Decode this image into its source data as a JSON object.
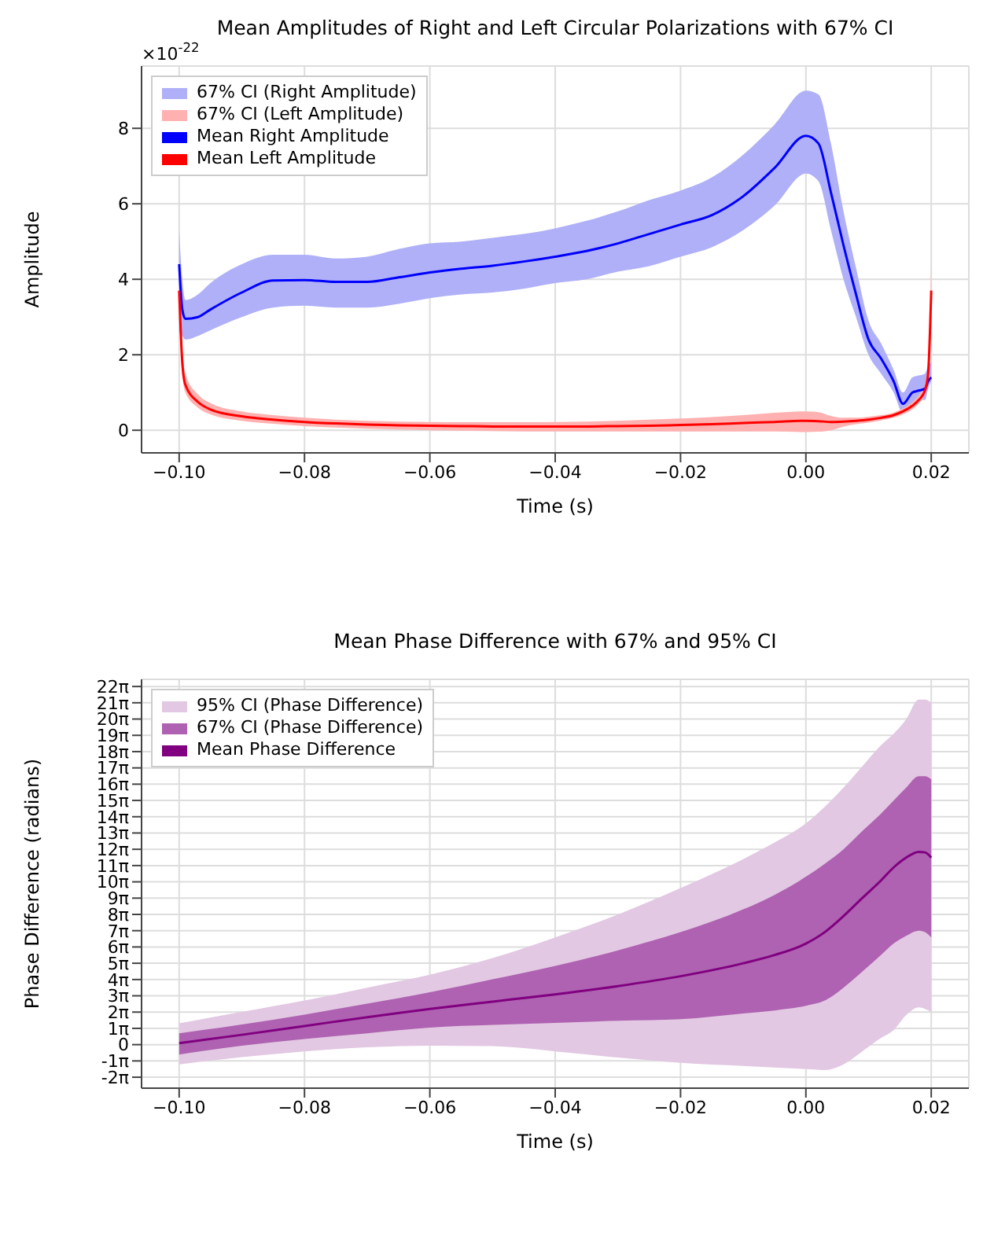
{
  "chart_data": [
    {
      "type": "line",
      "title": "Mean Amplitudes of Right and Left Circular Polarizations with 67% CI",
      "xlabel": "Time (s)",
      "ylabel": "Amplitude",
      "annotations": [
        "×10$^{-22}$"
      ],
      "x": [
        -0.1,
        -0.0995,
        -0.099,
        -0.097,
        -0.095,
        -0.09,
        -0.085,
        -0.08,
        -0.075,
        -0.07,
        -0.065,
        -0.06,
        -0.055,
        -0.05,
        -0.045,
        -0.04,
        -0.035,
        -0.03,
        -0.025,
        -0.02,
        -0.015,
        -0.01,
        -0.005,
        0,
        0.002,
        0.004,
        0.006,
        0.008,
        0.01,
        0.012,
        0.014,
        0.0155,
        0.017,
        0.018,
        0.019,
        0.0195,
        0.02
      ],
      "series": [
        {
          "name": "67% CI (Right Amplitude)",
          "type": "area",
          "color": "#b0b0f8",
          "values": [
            null,
            null,
            null,
            null,
            null,
            null,
            null,
            null,
            null,
            null,
            null,
            null,
            null,
            null,
            null,
            null,
            null,
            null,
            null,
            null,
            null,
            null,
            null,
            null,
            null,
            null,
            null,
            null,
            null,
            null,
            null,
            null,
            null,
            null,
            null,
            null,
            null
          ],
          "lower": [
            2.6,
            2.5,
            2.4,
            2.5,
            2.65,
            3.0,
            3.25,
            3.3,
            3.25,
            3.25,
            3.35,
            3.5,
            3.6,
            3.65,
            3.75,
            3.9,
            4.0,
            4.2,
            4.35,
            4.6,
            4.85,
            5.3,
            5.95,
            6.8,
            6.6,
            5.3,
            4.0,
            3.0,
            2.0,
            1.5,
            1.0,
            0.45,
            0.7,
            0.8,
            0.8,
            1.1,
            1.3
          ],
          "upper": [
            5.3,
            4.0,
            3.45,
            3.6,
            3.9,
            4.4,
            4.65,
            4.65,
            4.55,
            4.6,
            4.8,
            4.95,
            5.0,
            5.1,
            5.2,
            5.35,
            5.55,
            5.8,
            6.1,
            6.35,
            6.7,
            7.3,
            8.1,
            9.0,
            8.9,
            7.6,
            5.8,
            4.3,
            2.9,
            2.3,
            1.6,
            1.0,
            1.4,
            1.45,
            1.5,
            1.7,
            1.8
          ]
        },
        {
          "name": "67% CI (Left Amplitude)",
          "type": "area",
          "color": "#ffb0b0",
          "values": [
            null,
            null,
            null,
            null,
            null,
            null,
            null,
            null,
            null,
            null,
            null,
            null,
            null,
            null,
            null,
            null,
            null,
            null,
            null,
            null,
            null,
            null,
            null,
            null,
            null,
            null,
            null,
            null,
            null,
            null,
            null,
            null,
            null,
            null,
            null,
            null,
            null
          ],
          "lower": [
            3.4,
            1.5,
            1.0,
            0.6,
            0.42,
            0.25,
            0.17,
            0.11,
            0.07,
            0.04,
            0.02,
            0.0,
            -0.01,
            -0.02,
            -0.03,
            -0.03,
            -0.03,
            -0.03,
            -0.03,
            -0.03,
            -0.03,
            -0.03,
            -0.03,
            -0.05,
            -0.04,
            0.0,
            0.1,
            0.16,
            0.2,
            0.26,
            0.33,
            0.42,
            0.55,
            0.7,
            0.95,
            1.3,
            3.0
          ],
          "upper": [
            4.0,
            2.2,
            1.5,
            0.95,
            0.72,
            0.5,
            0.4,
            0.33,
            0.28,
            0.25,
            0.23,
            0.22,
            0.21,
            0.21,
            0.21,
            0.22,
            0.23,
            0.25,
            0.28,
            0.31,
            0.35,
            0.4,
            0.46,
            0.5,
            0.48,
            0.38,
            0.33,
            0.33,
            0.36,
            0.4,
            0.47,
            0.58,
            0.75,
            0.92,
            1.2,
            1.8,
            4.4
          ]
        },
        {
          "name": "Mean Right Amplitude",
          "color": "#0000ff",
          "values": [
            4.4,
            3.2,
            2.95,
            3.0,
            3.2,
            3.65,
            3.97,
            3.98,
            3.93,
            3.93,
            4.05,
            4.18,
            4.28,
            4.36,
            4.47,
            4.6,
            4.75,
            4.95,
            5.2,
            5.45,
            5.7,
            6.2,
            6.95,
            7.8,
            7.6,
            6.3,
            4.9,
            3.6,
            2.4,
            1.9,
            1.3,
            0.7,
            1.0,
            1.05,
            1.1,
            1.3,
            1.4
          ]
        },
        {
          "name": "Mean Left Amplitude",
          "color": "#ff0000",
          "values": [
            3.7,
            1.8,
            1.2,
            0.75,
            0.55,
            0.37,
            0.28,
            0.22,
            0.18,
            0.15,
            0.13,
            0.12,
            0.11,
            0.1,
            0.1,
            0.1,
            0.1,
            0.11,
            0.12,
            0.14,
            0.16,
            0.19,
            0.22,
            0.25,
            0.24,
            0.22,
            0.23,
            0.25,
            0.28,
            0.33,
            0.4,
            0.5,
            0.65,
            0.8,
            1.05,
            1.5,
            3.7
          ]
        }
      ],
      "xlim": [
        -0.106,
        0.026
      ],
      "xticks": [
        {
          "value": -0.1,
          "label": "−0.10"
        },
        {
          "value": -0.08,
          "label": "−0.08"
        },
        {
          "value": -0.06,
          "label": "−0.06"
        },
        {
          "value": -0.04,
          "label": "−0.04"
        },
        {
          "value": -0.02,
          "label": "−0.02"
        },
        {
          "value": 0,
          "label": "0.00"
        },
        {
          "value": 0.02,
          "label": "0.02"
        }
      ],
      "ylim": [
        -0.6,
        9.65
      ],
      "yticks": [
        0,
        2,
        4,
        6,
        8
      ],
      "grid": true,
      "legend": "top left"
    },
    {
      "type": "line",
      "title": "Mean Phase Difference with 67% and 95% CI",
      "xlabel": "Time (s)",
      "ylabel": "Phase Difference (radians)",
      "x": [
        -0.1,
        -0.09,
        -0.08,
        -0.07,
        -0.06,
        -0.05,
        -0.04,
        -0.03,
        -0.02,
        -0.01,
        -0.005,
        0,
        0.003,
        0.006,
        0.009,
        0.012,
        0.014,
        0.016,
        0.018,
        0.019,
        0.02
      ],
      "series": [
        {
          "name": "95% CI (Phase Difference)",
          "type": "area",
          "color": "#e2c8e2",
          "values": [
            null,
            null,
            null,
            null,
            null,
            null,
            null,
            null,
            null,
            null,
            null,
            null,
            null,
            null,
            null,
            null,
            null,
            null,
            null,
            null,
            null
          ],
          "lower": [
            -3.8,
            -2.4,
            -1.3,
            -0.5,
            -0.2,
            -0.3,
            -1.3,
            -2.5,
            -3.5,
            -4.1,
            -4.4,
            -4.7,
            -4.9,
            -3.8,
            -1.3,
            1.3,
            2.8,
            5.7,
            7.2,
            6.9,
            6.3
          ],
          "upper": [
            4.1,
            6.3,
            8.5,
            11.0,
            13.5,
            16.7,
            20.7,
            25.1,
            30.2,
            35.8,
            39.0,
            42.7,
            45.9,
            49.6,
            53.7,
            57.8,
            60.0,
            62.8,
            66.6,
            66.6,
            66.0
          ]
        },
        {
          "name": "67% CI (Phase Difference)",
          "type": "area",
          "color": "#ae62b1",
          "values": [
            null,
            null,
            null,
            null,
            null,
            null,
            null,
            null,
            null,
            null,
            null,
            null,
            null,
            null,
            null,
            null,
            null,
            null,
            null,
            null,
            null
          ],
          "lower": [
            -1.9,
            -0.2,
            1.1,
            2.2,
            3.3,
            3.8,
            4.2,
            4.6,
            4.9,
            6.0,
            6.6,
            7.5,
            8.5,
            11.0,
            14.1,
            17.3,
            19.5,
            21.0,
            22.0,
            21.7,
            20.7
          ],
          "upper": [
            2.2,
            3.9,
            5.8,
            7.9,
            10.1,
            12.6,
            15.2,
            18.2,
            21.7,
            26.1,
            28.9,
            32.4,
            34.9,
            37.7,
            41.2,
            44.6,
            47.1,
            49.6,
            51.8,
            51.8,
            51.2
          ]
        },
        {
          "name": "Mean Phase Difference",
          "color": "#800080",
          "values": [
            0.3,
            1.9,
            3.6,
            5.3,
            6.9,
            8.3,
            9.7,
            11.3,
            13.2,
            15.7,
            17.3,
            19.5,
            21.7,
            24.8,
            28.3,
            31.7,
            34.2,
            36.1,
            37.2,
            37.1,
            36.1
          ]
        }
      ],
      "xlim": [
        -0.106,
        0.026
      ],
      "xticks": [
        {
          "value": -0.1,
          "label": "−0.10"
        },
        {
          "value": -0.08,
          "label": "−0.08"
        },
        {
          "value": -0.06,
          "label": "−0.06"
        },
        {
          "value": -0.04,
          "label": "−0.04"
        },
        {
          "value": -0.02,
          "label": "−0.02"
        },
        {
          "value": 0,
          "label": "0.00"
        },
        {
          "value": 0.02,
          "label": "0.02"
        }
      ],
      "ylim": [
        -8.4,
        70.5
      ],
      "yticks": [
        {
          "value": -6.2832,
          "label": "-2π"
        },
        {
          "value": -3.1416,
          "label": "-1π"
        },
        {
          "value": 0,
          "label": "0"
        },
        {
          "value": 3.1416,
          "label": "1π"
        },
        {
          "value": 6.2832,
          "label": "2π"
        },
        {
          "value": 9.4248,
          "label": "3π"
        },
        {
          "value": 12.5664,
          "label": "4π"
        },
        {
          "value": 15.708,
          "label": "5π"
        },
        {
          "value": 18.8496,
          "label": "6π"
        },
        {
          "value": 21.9911,
          "label": "7π"
        },
        {
          "value": 25.1327,
          "label": "8π"
        },
        {
          "value": 28.2743,
          "label": "9π"
        },
        {
          "value": 31.4159,
          "label": "10π"
        },
        {
          "value": 34.5575,
          "label": "11π"
        },
        {
          "value": 37.6991,
          "label": "12π"
        },
        {
          "value": 40.8407,
          "label": "13π"
        },
        {
          "value": 43.9823,
          "label": "14π"
        },
        {
          "value": 47.1239,
          "label": "15π"
        },
        {
          "value": 50.2655,
          "label": "16π"
        },
        {
          "value": 53.4071,
          "label": "17π"
        },
        {
          "value": 56.5487,
          "label": "18π"
        },
        {
          "value": 59.6903,
          "label": "19π"
        },
        {
          "value": 62.8319,
          "label": "20π"
        },
        {
          "value": 65.9734,
          "label": "21π"
        },
        {
          "value": 69.115,
          "label": "22π"
        }
      ],
      "grid": true,
      "legend": "top left"
    }
  ]
}
